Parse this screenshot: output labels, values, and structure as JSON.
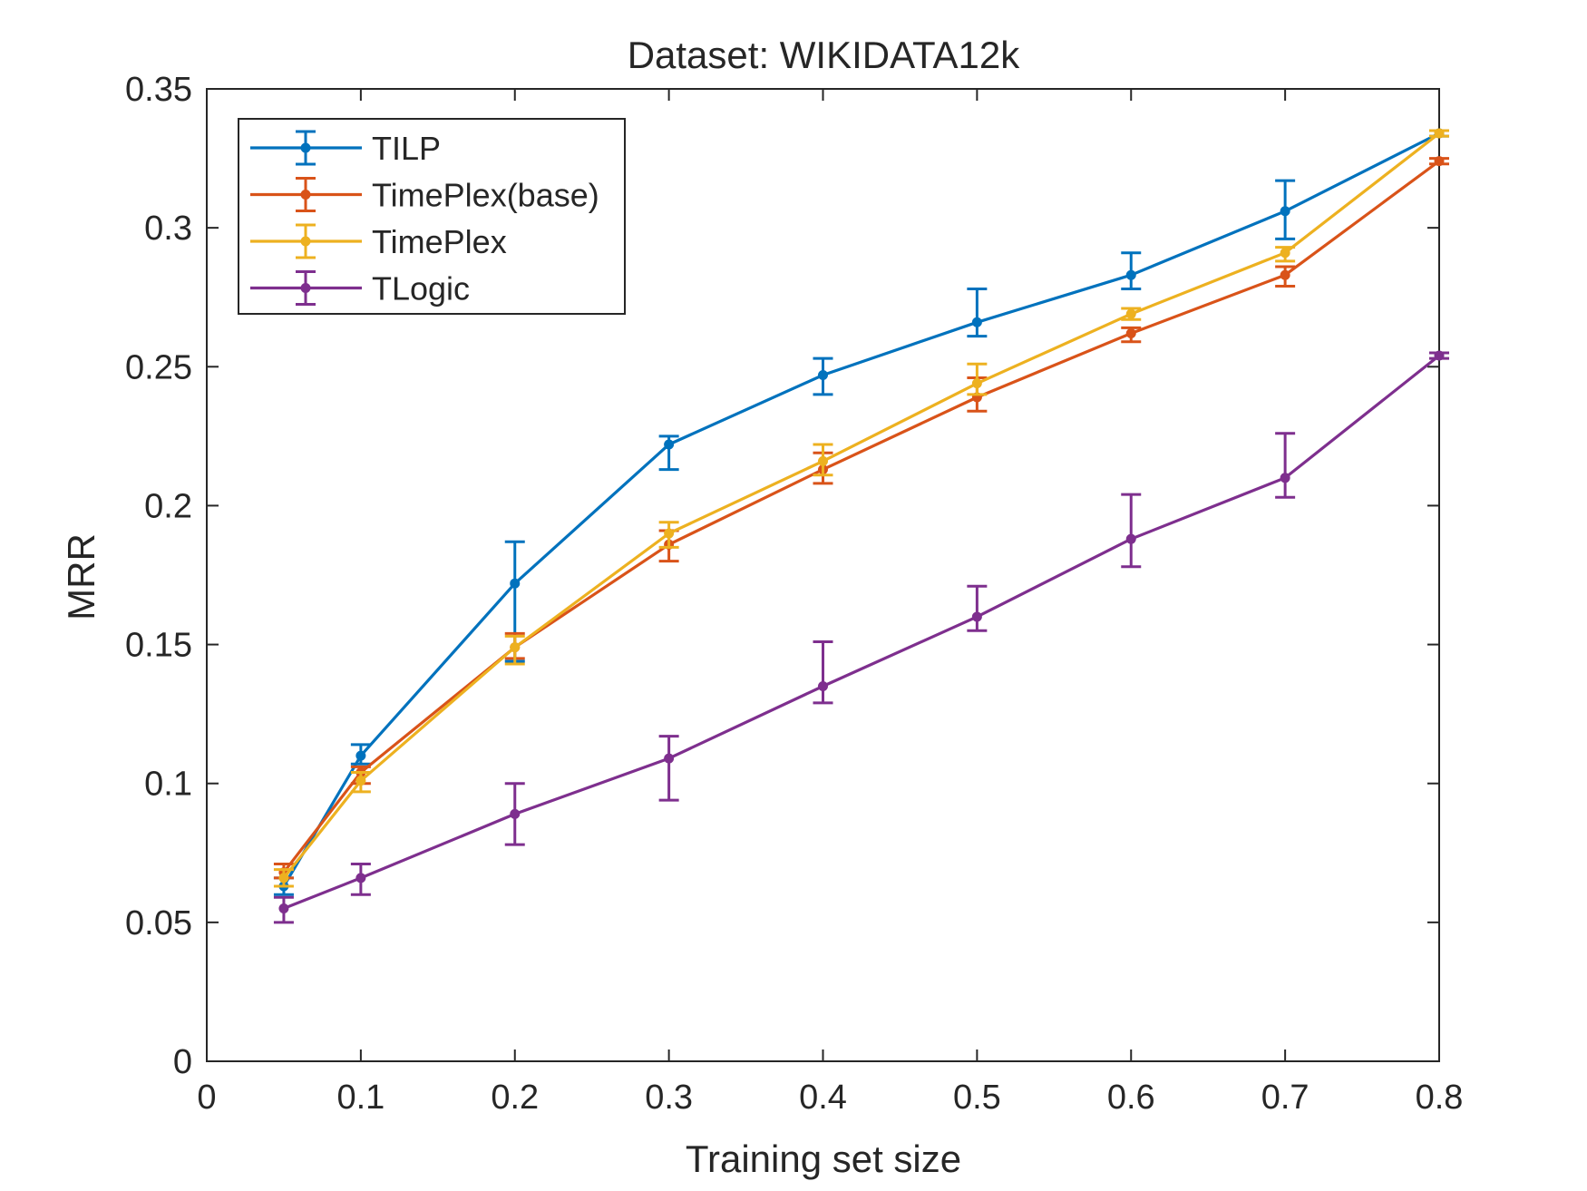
{
  "chart_data": {
    "type": "line",
    "title": "Dataset: WIKIDATA12k",
    "xlabel": "Training set size",
    "ylabel": "MRR",
    "xlim": [
      0,
      0.8
    ],
    "ylim": [
      0,
      0.35
    ],
    "xticks": [
      0,
      0.1,
      0.2,
      0.3,
      0.4,
      0.5,
      0.6,
      0.7,
      0.8
    ],
    "xtick_labels": [
      "0",
      "0.1",
      "0.2",
      "0.3",
      "0.4",
      "0.5",
      "0.6",
      "0.7",
      "0.8"
    ],
    "yticks": [
      0,
      0.05,
      0.1,
      0.15,
      0.2,
      0.25,
      0.3,
      0.35
    ],
    "ytick_labels": [
      "0",
      "0.05",
      "0.1",
      "0.15",
      "0.2",
      "0.25",
      "0.3",
      "0.35"
    ],
    "grid": false,
    "legend_position": "top-left",
    "x": [
      0.05,
      0.1,
      0.2,
      0.3,
      0.4,
      0.5,
      0.6,
      0.7,
      0.8
    ],
    "series": [
      {
        "name": "TILP",
        "color": "#0072BD",
        "values": [
          0.063,
          0.11,
          0.172,
          0.222,
          0.247,
          0.266,
          0.283,
          0.306,
          0.334
        ],
        "err_low": [
          0.06,
          0.107,
          0.144,
          0.213,
          0.24,
          0.261,
          0.278,
          0.296,
          0.333
        ],
        "err_high": [
          0.066,
          0.114,
          0.187,
          0.225,
          0.253,
          0.278,
          0.291,
          0.317,
          0.335
        ]
      },
      {
        "name": "TimePlex(base)",
        "color": "#D95319",
        "values": [
          0.068,
          0.104,
          0.149,
          0.186,
          0.213,
          0.239,
          0.262,
          0.283,
          0.324
        ],
        "err_low": [
          0.066,
          0.1,
          0.145,
          0.18,
          0.208,
          0.234,
          0.259,
          0.279,
          0.323
        ],
        "err_high": [
          0.071,
          0.106,
          0.154,
          0.191,
          0.219,
          0.246,
          0.264,
          0.286,
          0.325
        ]
      },
      {
        "name": "TimePlex",
        "color": "#EDB120",
        "values": [
          0.066,
          0.101,
          0.149,
          0.19,
          0.216,
          0.244,
          0.269,
          0.291,
          0.334
        ],
        "err_low": [
          0.063,
          0.097,
          0.143,
          0.185,
          0.211,
          0.24,
          0.267,
          0.288,
          0.333
        ],
        "err_high": [
          0.069,
          0.104,
          0.153,
          0.194,
          0.222,
          0.251,
          0.271,
          0.293,
          0.335
        ]
      },
      {
        "name": "TLogic",
        "color": "#7E2F8E",
        "values": [
          0.055,
          0.066,
          0.089,
          0.109,
          0.135,
          0.16,
          0.188,
          0.21,
          0.254
        ],
        "err_low": [
          0.05,
          0.06,
          0.078,
          0.094,
          0.129,
          0.155,
          0.178,
          0.203,
          0.253
        ],
        "err_high": [
          0.059,
          0.071,
          0.1,
          0.117,
          0.151,
          0.171,
          0.204,
          0.226,
          0.255
        ]
      }
    ]
  }
}
